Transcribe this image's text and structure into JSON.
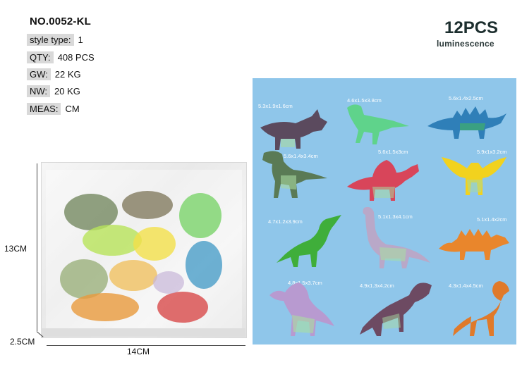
{
  "model": "NO.0052-KL",
  "specs": [
    {
      "label": "style type:",
      "value": "1"
    },
    {
      "label": "QTY:",
      "value": "408  PCS"
    },
    {
      "label": "GW:",
      "value": "22 KG"
    },
    {
      "label": "NW:",
      "value": "20  KG"
    },
    {
      "label": "MEAS:",
      "value": "CM"
    }
  ],
  "headline": {
    "count": "12PCS",
    "sub": "luminescence"
  },
  "bag_dimensions": {
    "height": "13CM",
    "depth": "2.5CM",
    "width": "14CM"
  },
  "figures": [
    {
      "size": "5.3x1.9x1.6cm",
      "icon": "triceratops-icon",
      "color": "#5b4a5e"
    },
    {
      "size": "4.6x1.5x3.8cm",
      "icon": "raptor-icon",
      "color": "#5fd38b"
    },
    {
      "size": "5.6x1.4x2.5cm",
      "icon": "stegosaurus-icon",
      "color": "#2f7fb8"
    },
    {
      "size": "5.6x1.4x3.4cm",
      "icon": "tyrannosaurus-icon",
      "color": "#5a7a55"
    },
    {
      "size": "5.6x1.5x3cm",
      "icon": "spinosaurus-icon",
      "color": "#d8455a"
    },
    {
      "size": "5.9x1x3.2cm",
      "icon": "pterosaur-icon",
      "color": "#f2d21e"
    },
    {
      "size": "4.7x1.2x3.9cm",
      "icon": "parasaurolophus-icon",
      "color": "#3fae3a"
    },
    {
      "size": "5.1x1.3x4.1cm",
      "icon": "sauropod-icon",
      "color": "#b9a8c8"
    },
    {
      "size": "5.1x1.4x2cm",
      "icon": "ankylosaurus-icon",
      "color": "#e9862c"
    },
    {
      "size": "4.8x1.5x3.7cm",
      "icon": "spinosaurus-icon",
      "color": "#b89ad0"
    },
    {
      "size": "4.9x1.3x4.2cm",
      "icon": "tyrannosaurus-icon",
      "color": "#6d4a62"
    },
    {
      "size": "4.3x1.4x4.5cm",
      "icon": "raptor-icon",
      "color": "#e07a2a"
    }
  ]
}
